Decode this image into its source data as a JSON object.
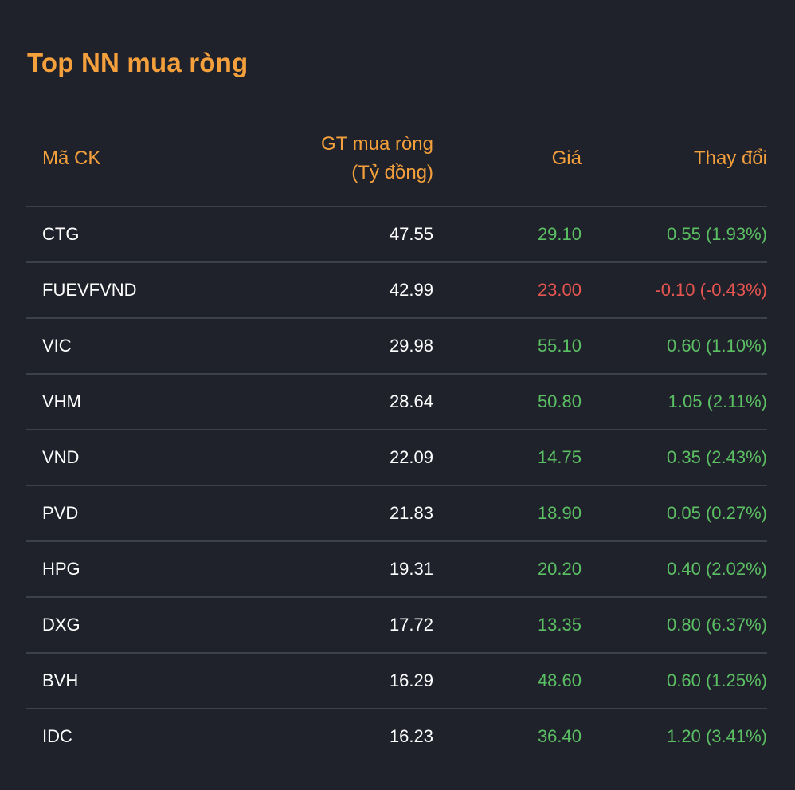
{
  "title": "Top NN mua ròng",
  "colors": {
    "accent": "#f4a03c",
    "up": "#5bbf63",
    "down": "#e65550",
    "background": "#20222b",
    "divider": "#3d404d"
  },
  "headers": {
    "code": "Mã CK",
    "value_line1": "GT mua ròng",
    "value_line2": "(Tỷ đồng)",
    "price": "Giá",
    "change": "Thay đổi"
  },
  "rows": [
    {
      "code": "CTG",
      "value": "47.55",
      "price": "29.10",
      "change": "0.55 (1.93%)",
      "direction": "up"
    },
    {
      "code": "FUEVFVND",
      "value": "42.99",
      "price": "23.00",
      "change": "-0.10 (-0.43%)",
      "direction": "down"
    },
    {
      "code": "VIC",
      "value": "29.98",
      "price": "55.10",
      "change": "0.60 (1.10%)",
      "direction": "up"
    },
    {
      "code": "VHM",
      "value": "28.64",
      "price": "50.80",
      "change": "1.05 (2.11%)",
      "direction": "up"
    },
    {
      "code": "VND",
      "value": "22.09",
      "price": "14.75",
      "change": "0.35 (2.43%)",
      "direction": "up"
    },
    {
      "code": "PVD",
      "value": "21.83",
      "price": "18.90",
      "change": "0.05 (0.27%)",
      "direction": "up"
    },
    {
      "code": "HPG",
      "value": "19.31",
      "price": "20.20",
      "change": "0.40 (2.02%)",
      "direction": "up"
    },
    {
      "code": "DXG",
      "value": "17.72",
      "price": "13.35",
      "change": "0.80 (6.37%)",
      "direction": "up"
    },
    {
      "code": "BVH",
      "value": "16.29",
      "price": "48.60",
      "change": "0.60 (1.25%)",
      "direction": "up"
    },
    {
      "code": "IDC",
      "value": "16.23",
      "price": "36.40",
      "change": "1.20 (3.41%)",
      "direction": "up"
    }
  ]
}
